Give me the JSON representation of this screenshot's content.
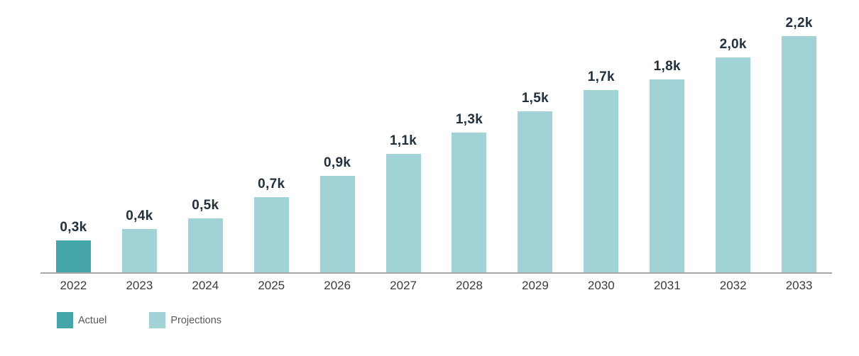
{
  "chart_data": {
    "type": "bar",
    "categories": [
      "2022",
      "2023",
      "2024",
      "2025",
      "2026",
      "2027",
      "2028",
      "2029",
      "2030",
      "2031",
      "2032",
      "2033"
    ],
    "values": [
      0.3,
      0.4,
      0.5,
      0.7,
      0.9,
      1.1,
      1.3,
      1.5,
      1.7,
      1.8,
      2.0,
      2.2
    ],
    "value_labels": [
      "0,3k",
      "0,4k",
      "0,5k",
      "0,7k",
      "0,9k",
      "1,1k",
      "1,3k",
      "1,5k",
      "1,7k",
      "1,8k",
      "2,0k",
      "2,2k"
    ],
    "series": [
      {
        "name": "Actuel",
        "color": "#44a6a9"
      },
      {
        "name": "Projections",
        "color": "#a0d2d6"
      }
    ],
    "series_index_per_bar": [
      0,
      1,
      1,
      1,
      1,
      1,
      1,
      1,
      1,
      1,
      1,
      1
    ],
    "title": "",
    "xlabel": "",
    "ylabel": "",
    "ylim": [
      0,
      2.2
    ],
    "grid": false,
    "y_axis_visible": false,
    "legend_position": "bottom-left"
  },
  "legend": {
    "items": [
      {
        "label": "Actuel",
        "color": "#44a6a9"
      },
      {
        "label": "Projections",
        "color": "#a0d2d6"
      }
    ]
  },
  "style": {
    "bg": "#ffffff",
    "color_actual": "#44a6a9",
    "color_projection": "#a0d2d6",
    "color_value_label": "#21303d",
    "color_tick_label": "#3b3b3b",
    "color_axis_line": "#a6a6a6",
    "color_legend_text": "#595959"
  }
}
